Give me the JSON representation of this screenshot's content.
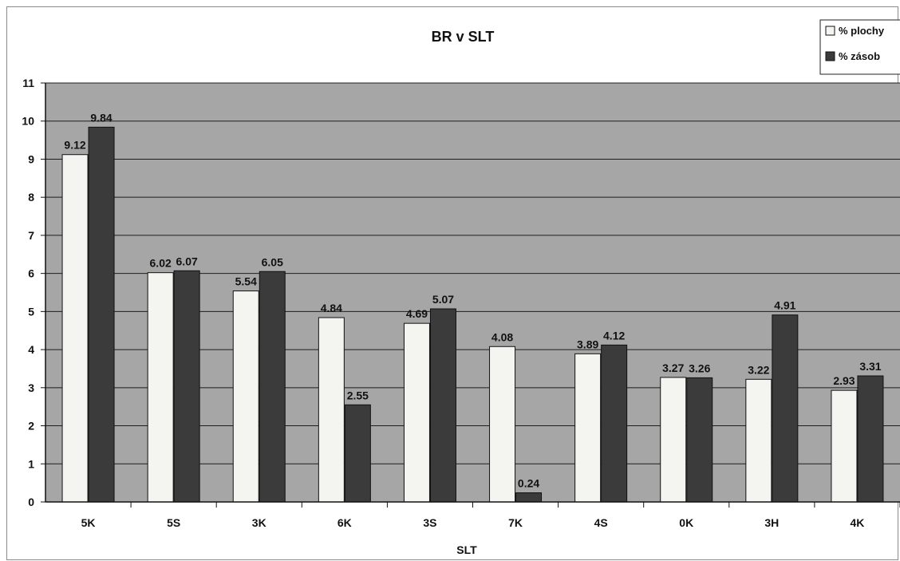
{
  "chart_data": {
    "type": "bar",
    "title": "BR v SLT",
    "xlabel": "SLT",
    "ylabel": "",
    "categories": [
      "5K",
      "5S",
      "3K",
      "6K",
      "3S",
      "7K",
      "4S",
      "0K",
      "3H",
      "4K"
    ],
    "series": [
      {
        "name": "% plochy",
        "values": [
          9.12,
          6.02,
          5.54,
          4.84,
          4.69,
          4.08,
          3.89,
          3.27,
          3.22,
          2.93
        ],
        "color": "#f4f4f0"
      },
      {
        "name": "% zásob",
        "values": [
          9.84,
          6.07,
          6.05,
          2.55,
          5.07,
          0.24,
          4.12,
          3.26,
          4.91,
          3.31
        ],
        "color": "#3b3b3b"
      }
    ],
    "ylim": [
      0,
      11
    ],
    "yticks": [
      "0",
      "1",
      "2",
      "3",
      "4",
      "5",
      "6",
      "7",
      "8",
      "9",
      "10",
      "11"
    ],
    "grid": true,
    "legend_position": "top-right",
    "plot_background": "#a6a6a6"
  }
}
